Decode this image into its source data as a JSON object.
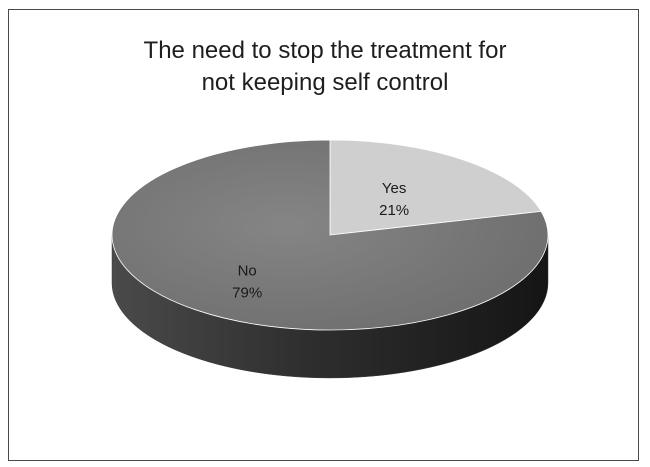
{
  "chart_data": {
    "type": "pie",
    "style": "3d",
    "title_lines": [
      "The need to stop the treatment for",
      "not keeping self control"
    ],
    "slices": [
      {
        "label": "Yes",
        "percent_label": "21%",
        "value": 21,
        "color": "#cfcfcf"
      },
      {
        "label": "No",
        "percent_label": "79%",
        "value": 79,
        "color": "#7a7a7a"
      }
    ],
    "legend": "none",
    "colors": {
      "side_dark": "#3a3a3a",
      "frame": "#4a4a4a",
      "background": "#ffffff"
    }
  }
}
